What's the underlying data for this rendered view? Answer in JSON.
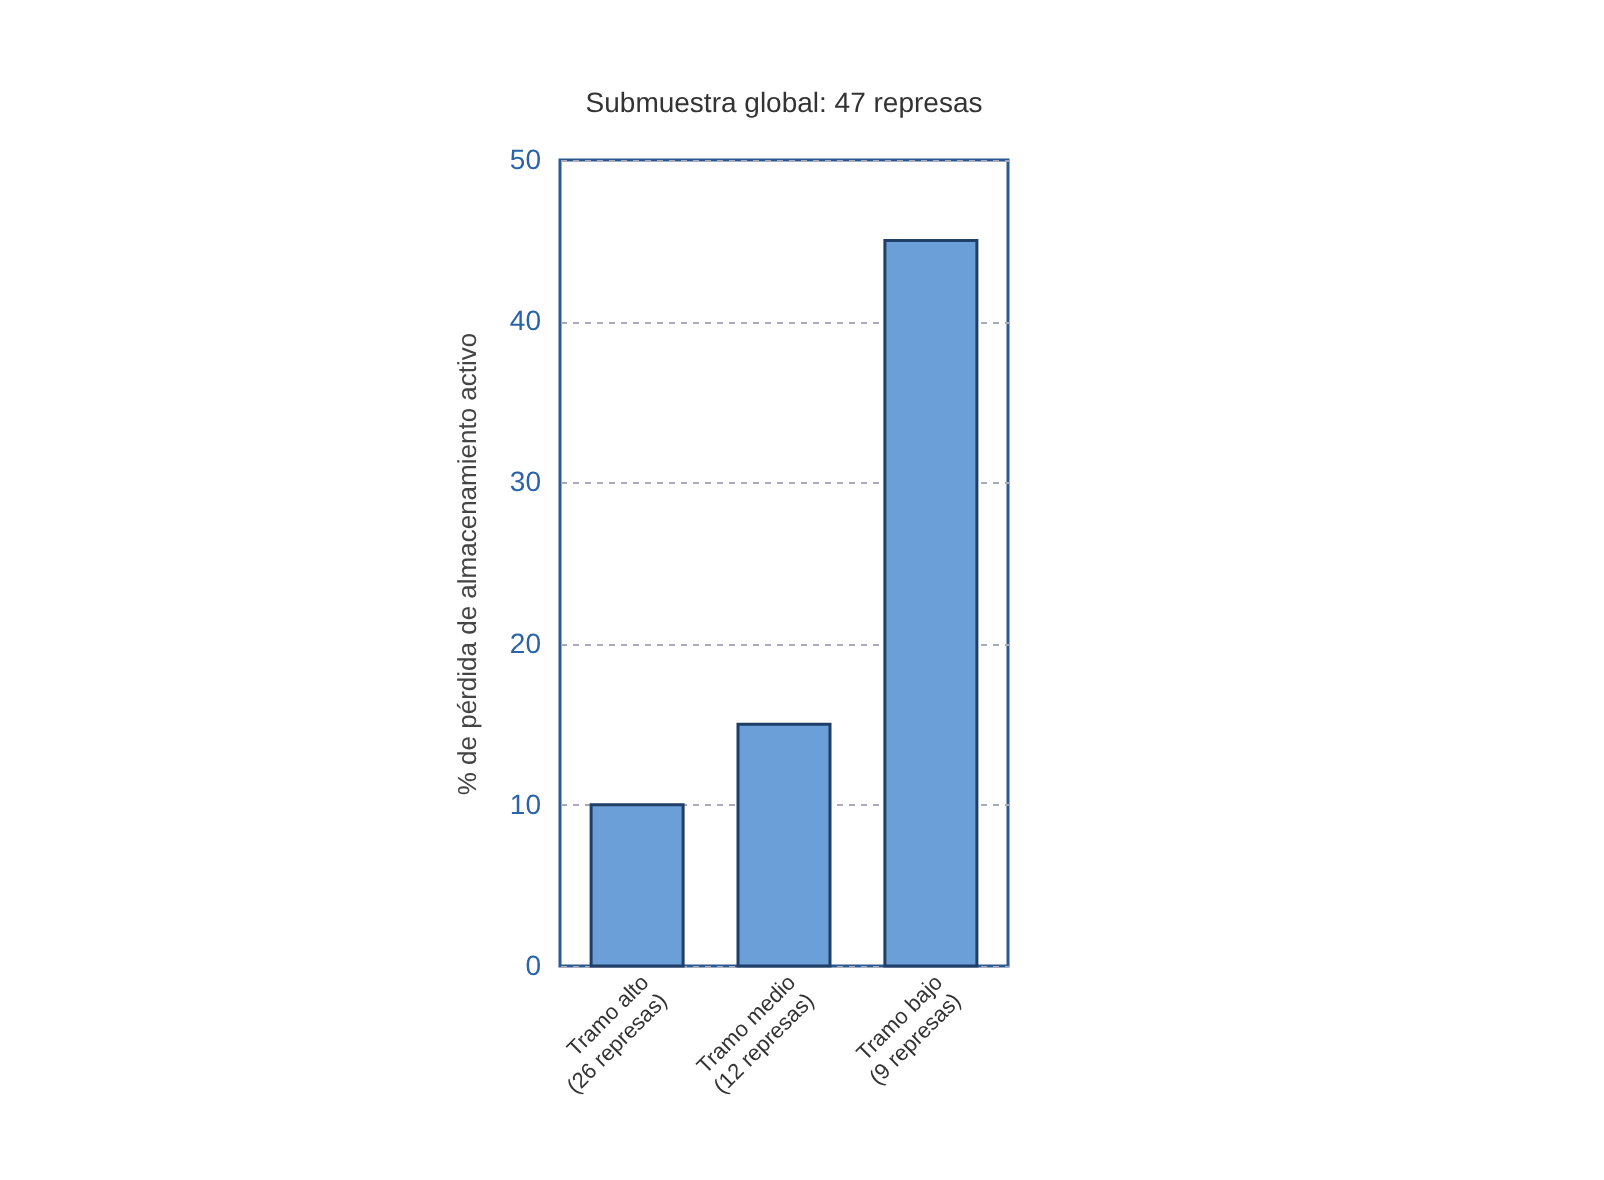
{
  "chart_data": {
    "type": "bar",
    "title": "Submuestra global: 47 represas",
    "ylabel": "% de pérdida de almacenamiento activo",
    "categories": [
      "Tramo alto\n(26 represas)",
      "Tramo medio\n(12 represas)",
      "Tramo bajo\n(9 represas)"
    ],
    "values": [
      10,
      15,
      45
    ],
    "color": "#6a9fd8",
    "ylim": [
      0,
      50
    ],
    "yticks": [
      0,
      10,
      20,
      30,
      40,
      50
    ],
    "grid": "y"
  }
}
